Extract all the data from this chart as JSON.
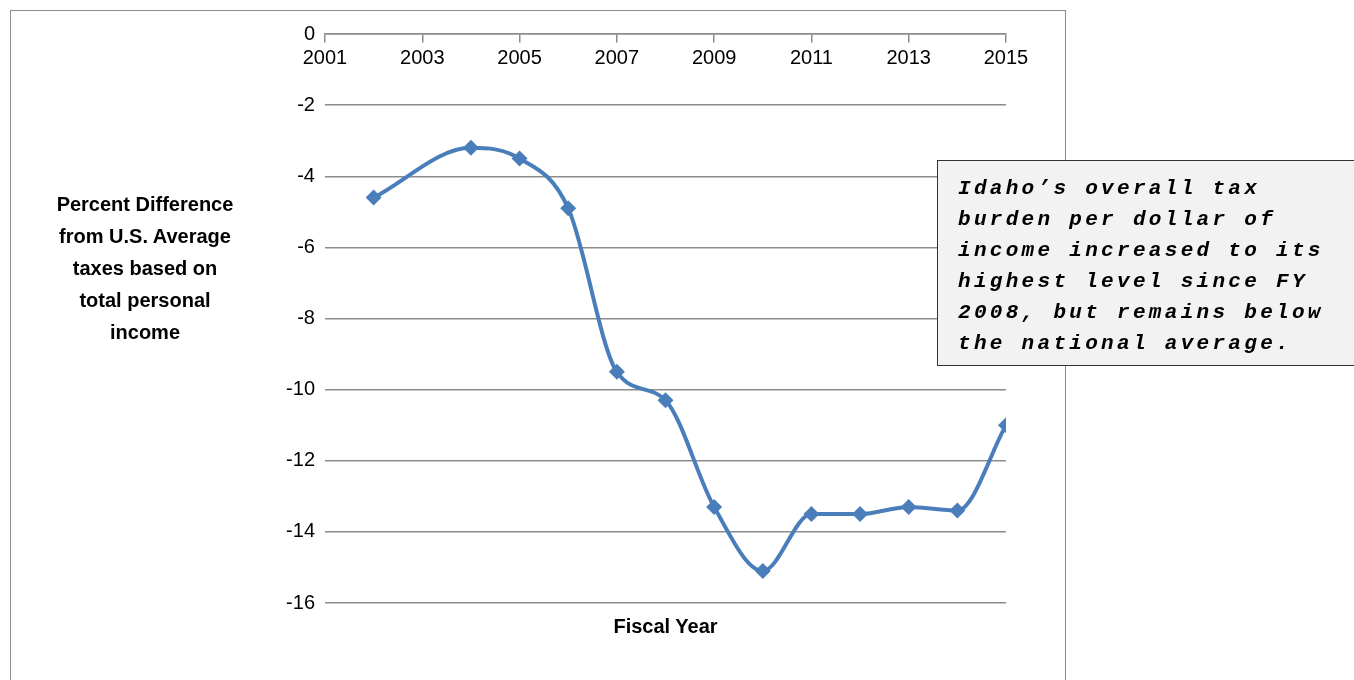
{
  "chart_data": {
    "type": "line",
    "xlabel": "Fiscal Year",
    "ylabel": "Percent Difference from U.S. Average taxes based on total personal income",
    "x": [
      2002,
      2004,
      2005,
      2006,
      2007,
      2008,
      2009,
      2010,
      2011,
      2012,
      2013,
      2014,
      2015
    ],
    "series": [
      {
        "color": "#4a7ebb",
        "values": [
          -4.6,
          -3.2,
          -3.5,
          -4.9,
          -9.5,
          -10.3,
          -13.3,
          -15.1,
          -13.5,
          -13.5,
          -13.3,
          -13.4,
          -11.0
        ]
      }
    ],
    "xlim": [
      2001,
      2015
    ],
    "xticks": [
      2001,
      2003,
      2005,
      2007,
      2009,
      2011,
      2013,
      2015
    ],
    "ylim": [
      -16,
      0
    ],
    "yticks": [
      0,
      -2,
      -4,
      -6,
      -8,
      -10,
      -12,
      -14,
      -16
    ],
    "grid": "y",
    "marker": "diamond",
    "annotations": [
      "Idaho’s overall tax burden per dollar of income increased to its highest level since FY 2008, but remains below the national average."
    ]
  }
}
